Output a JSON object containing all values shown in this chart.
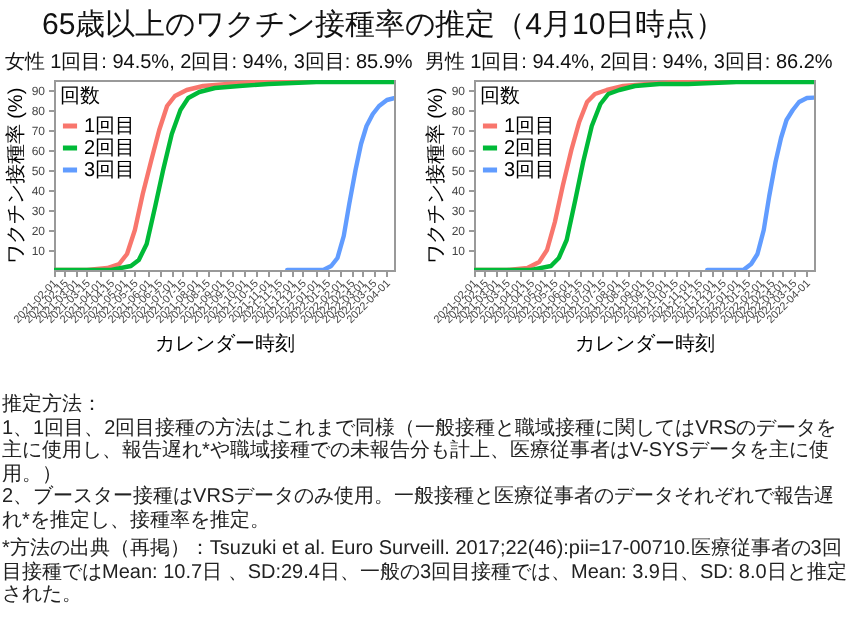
{
  "chart_data": [
    {
      "type": "line",
      "title": "65歳以上のワクチン接種率の推定（4月10日時点）",
      "subtitle": "女性 1回目: 94.5%, 2回目: 94%, 3回目: 85.9%",
      "xlabel": "カレンダー時刻",
      "ylabel": "ワクチン接種率 (%)",
      "legend_title": "回数",
      "legend": "top left",
      "xlim": [
        "2021-02-01",
        "2022-04-10"
      ],
      "ylim": [
        0,
        95
      ],
      "yticks": [
        10,
        20,
        30,
        40,
        50,
        60,
        70,
        80,
        90
      ],
      "xticks": [
        "2021-02-01",
        "2021-02-15",
        "2021-03-01",
        "2021-03-15",
        "2021-04-01",
        "2021-04-15",
        "2021-05-01",
        "2021-05-15",
        "2021-06-01",
        "2021-06-15",
        "2021-07-01",
        "2021-07-15",
        "2021-08-01",
        "2021-08-15",
        "2021-09-01",
        "2021-09-15",
        "2021-10-01",
        "2021-10-15",
        "2021-11-01",
        "2021-11-15",
        "2021-12-01",
        "2021-12-15",
        "2022-01-01",
        "2022-01-15",
        "2022-02-01",
        "2022-02-15",
        "2022-03-01",
        "2022-03-15",
        "2022-04-01"
      ],
      "series": [
        {
          "name": "1回目",
          "color": "#f8766d",
          "x": [
            "2021-02-01",
            "2021-03-15",
            "2021-04-10",
            "2021-04-25",
            "2021-05-05",
            "2021-05-15",
            "2021-05-25",
            "2021-06-05",
            "2021-06-15",
            "2021-06-25",
            "2021-07-05",
            "2021-07-20",
            "2021-08-10",
            "2021-09-10",
            "2021-10-15",
            "2021-12-01",
            "2022-04-10"
          ],
          "values": [
            0,
            0,
            1,
            3,
            8,
            20,
            38,
            55,
            70,
            82,
            87,
            90,
            92,
            93,
            94,
            94,
            94.5
          ]
        },
        {
          "name": "2回目",
          "color": "#00ba38",
          "x": [
            "2021-02-01",
            "2021-04-15",
            "2021-05-10",
            "2021-05-20",
            "2021-05-30",
            "2021-06-10",
            "2021-06-20",
            "2021-07-01",
            "2021-07-12",
            "2021-07-22",
            "2021-08-05",
            "2021-08-25",
            "2021-09-25",
            "2021-11-01",
            "2022-01-01",
            "2022-04-10"
          ],
          "values": [
            0,
            0,
            2,
            5,
            13,
            32,
            50,
            68,
            80,
            86,
            89,
            91,
            92,
            93,
            94,
            94
          ]
        },
        {
          "name": "3回目",
          "color": "#619cff",
          "x": [
            "2021-11-25",
            "2022-01-10",
            "2022-01-20",
            "2022-01-28",
            "2022-02-05",
            "2022-02-12",
            "2022-02-20",
            "2022-02-27",
            "2022-03-06",
            "2022-03-14",
            "2022-03-22",
            "2022-04-01",
            "2022-04-10"
          ],
          "values": [
            0,
            0,
            2,
            6,
            17,
            33,
            50,
            63,
            72,
            78,
            82,
            85,
            85.9
          ]
        }
      ],
      "annotations": [
        "推定方法：",
        "1、1回目、2回目接種の方法はこれまで同様（一般接種と職域接種に関してはVRSのデータを主に使用し、報告遅れ*や職域接種での未報告分も計上、医療従事者はV-SYSデータを主に使用。）",
        "2、ブースター接種はVRSデータのみ使用。一般接種と医療従事者のデータそれぞれで報告遅れ*を推定し、接種率を推定。",
        "*方法の出典（再掲）：Tsuzuki et al. Euro Surveill. 2017;22(46):pii=17-00710.医療従事者の3回目接種ではMean: 10.7日 、SD:29.4日、一般の3回目接種では、Mean: 3.9日、SD: 8.0日と推定された。"
      ]
    },
    {
      "type": "line",
      "subtitle": "男性 1回目: 94.4%, 2回目: 94%, 3回目: 86.2%",
      "xlabel": "カレンダー時刻",
      "ylabel": "ワクチン接種率 (%)",
      "legend_title": "回数",
      "legend": "top left",
      "xlim": [
        "2021-02-01",
        "2022-04-10"
      ],
      "ylim": [
        0,
        95
      ],
      "yticks": [
        10,
        20,
        30,
        40,
        50,
        60,
        70,
        80,
        90
      ],
      "xticks": [
        "2021-02-01",
        "2021-02-15",
        "2021-03-01",
        "2021-03-15",
        "2021-04-01",
        "2021-04-15",
        "2021-05-01",
        "2021-05-15",
        "2021-06-01",
        "2021-06-15",
        "2021-07-01",
        "2021-07-15",
        "2021-08-01",
        "2021-08-15",
        "2021-09-01",
        "2021-09-15",
        "2021-10-01",
        "2021-10-15",
        "2021-11-01",
        "2021-11-15",
        "2021-12-01",
        "2021-12-15",
        "2022-01-01",
        "2022-01-15",
        "2022-02-01",
        "2022-02-15",
        "2022-03-01",
        "2022-03-15",
        "2022-04-01"
      ],
      "series": [
        {
          "name": "1回目",
          "color": "#f8766d",
          "x": [
            "2021-02-01",
            "2021-03-15",
            "2021-04-10",
            "2021-04-25",
            "2021-05-05",
            "2021-05-15",
            "2021-05-25",
            "2021-06-05",
            "2021-06-15",
            "2021-06-25",
            "2021-07-05",
            "2021-07-20",
            "2021-08-10",
            "2021-09-10",
            "2021-10-15",
            "2021-12-01",
            "2022-04-10"
          ],
          "values": [
            0,
            0,
            1,
            4,
            10,
            24,
            42,
            60,
            74,
            84,
            88,
            90,
            92,
            93,
            94,
            94,
            94.4
          ]
        },
        {
          "name": "2回目",
          "color": "#00ba38",
          "x": [
            "2021-02-01",
            "2021-04-15",
            "2021-05-10",
            "2021-05-20",
            "2021-05-30",
            "2021-06-10",
            "2021-06-20",
            "2021-07-01",
            "2021-07-12",
            "2021-07-22",
            "2021-08-05",
            "2021-08-25",
            "2021-09-25",
            "2021-11-01",
            "2022-01-01",
            "2022-04-10"
          ],
          "values": [
            0,
            0,
            2,
            6,
            15,
            35,
            54,
            72,
            83,
            88,
            90,
            92,
            93,
            93,
            94,
            94
          ]
        },
        {
          "name": "3回目",
          "color": "#619cff",
          "x": [
            "2021-11-25",
            "2022-01-10",
            "2022-01-20",
            "2022-01-28",
            "2022-02-05",
            "2022-02-12",
            "2022-02-20",
            "2022-02-27",
            "2022-03-06",
            "2022-03-14",
            "2022-03-22",
            "2022-04-01",
            "2022-04-10"
          ],
          "values": [
            0,
            0,
            3,
            8,
            20,
            37,
            54,
            66,
            75,
            80,
            84,
            86,
            86.2
          ]
        }
      ]
    }
  ]
}
